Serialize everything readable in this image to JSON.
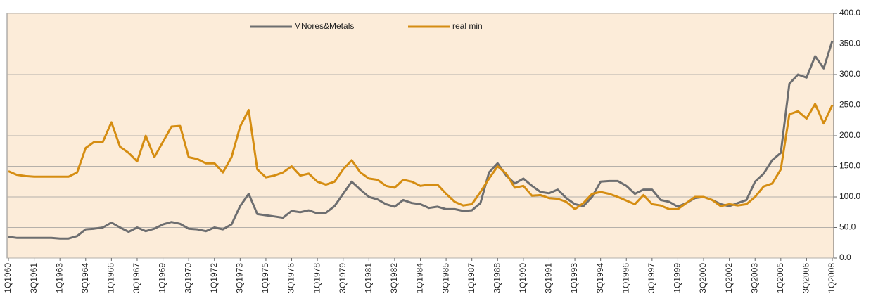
{
  "chart_data": {
    "type": "line",
    "categories": [
      "1Q1960",
      null,
      null,
      "3Q1961",
      null,
      null,
      "1Q1963",
      null,
      null,
      "3Q1964",
      null,
      null,
      "1Q1966",
      null,
      null,
      "3Q1967",
      null,
      null,
      "1Q1969",
      null,
      null,
      "3Q1970",
      null,
      null,
      "1Q1972",
      null,
      null,
      "3Q1973",
      null,
      null,
      "1Q1975",
      null,
      null,
      "3Q1976",
      null,
      null,
      "1Q1978",
      null,
      null,
      "3Q1979",
      null,
      null,
      "1Q1981",
      null,
      null,
      "3Q1982",
      null,
      null,
      "1Q1984",
      null,
      null,
      "3Q1985",
      null,
      null,
      "1Q1987",
      null,
      null,
      "3Q1988",
      null,
      null,
      "1Q1990",
      null,
      null,
      "3Q1991",
      null,
      null,
      "1Q1993",
      null,
      null,
      "3Q1994",
      null,
      null,
      "1Q1996",
      null,
      null,
      "3Q1997",
      null,
      null,
      "1Q1999",
      null,
      null,
      "3Q2000",
      null,
      null,
      "1Q2002",
      null,
      null,
      "3Q2003",
      null,
      null,
      "1Q2005",
      null,
      null,
      "3Q2006",
      null,
      null,
      "1Q2008"
    ],
    "series": [
      {
        "name": "MNores&Metals",
        "color": "#6d6e70",
        "values": [
          35,
          33,
          33,
          33,
          33,
          33,
          32,
          32,
          36,
          47,
          48,
          50,
          58,
          50,
          43,
          50,
          44,
          48,
          55,
          59,
          56,
          48,
          47,
          44,
          50,
          47,
          55,
          85,
          105,
          72,
          70,
          68,
          66,
          77,
          75,
          78,
          73,
          74,
          85,
          105,
          125,
          112,
          100,
          96,
          88,
          84,
          95,
          90,
          88,
          82,
          84,
          80,
          80,
          77,
          78,
          90,
          140,
          155,
          135,
          122,
          130,
          118,
          108,
          106,
          112,
          98,
          88,
          85,
          100,
          125,
          126,
          126,
          118,
          105,
          112,
          112,
          95,
          92,
          84,
          90,
          98,
          100,
          95,
          88,
          85,
          90,
          95,
          125,
          138,
          160,
          172,
          285,
          300,
          295,
          330,
          310,
          355
        ]
      },
      {
        "name": "real min",
        "color": "#d58d12",
        "values": [
          142,
          136,
          134,
          133,
          133,
          133,
          133,
          133,
          140,
          180,
          190,
          190,
          222,
          182,
          172,
          158,
          200,
          165,
          190,
          215,
          216,
          165,
          162,
          155,
          155,
          140,
          165,
          215,
          242,
          145,
          132,
          135,
          140,
          150,
          135,
          138,
          125,
          120,
          125,
          145,
          160,
          140,
          130,
          128,
          118,
          115,
          128,
          125,
          118,
          120,
          120,
          105,
          92,
          86,
          88,
          108,
          130,
          150,
          138,
          115,
          118,
          102,
          103,
          98,
          97,
          92,
          80,
          90,
          105,
          108,
          105,
          100,
          94,
          88,
          103,
          88,
          86,
          80,
          80,
          90,
          100,
          100,
          95,
          85,
          88,
          86,
          88,
          100,
          117,
          122,
          145,
          235,
          240,
          228,
          252,
          220,
          250
        ]
      }
    ],
    "ylim": [
      0,
      400
    ],
    "yticks": [
      {
        "value": 0,
        "label": "0.0"
      },
      {
        "value": 50,
        "label": "50.0"
      },
      {
        "value": 100,
        "label": "100.0"
      },
      {
        "value": 150,
        "label": "150.0"
      },
      {
        "value": 200,
        "label": "200.0"
      },
      {
        "value": 250,
        "label": "250.0"
      },
      {
        "value": 300,
        "label": "300.0"
      },
      {
        "value": 350,
        "label": "350.0"
      },
      {
        "value": 400,
        "label": "400.0"
      }
    ],
    "grid": true,
    "legend": "top"
  }
}
